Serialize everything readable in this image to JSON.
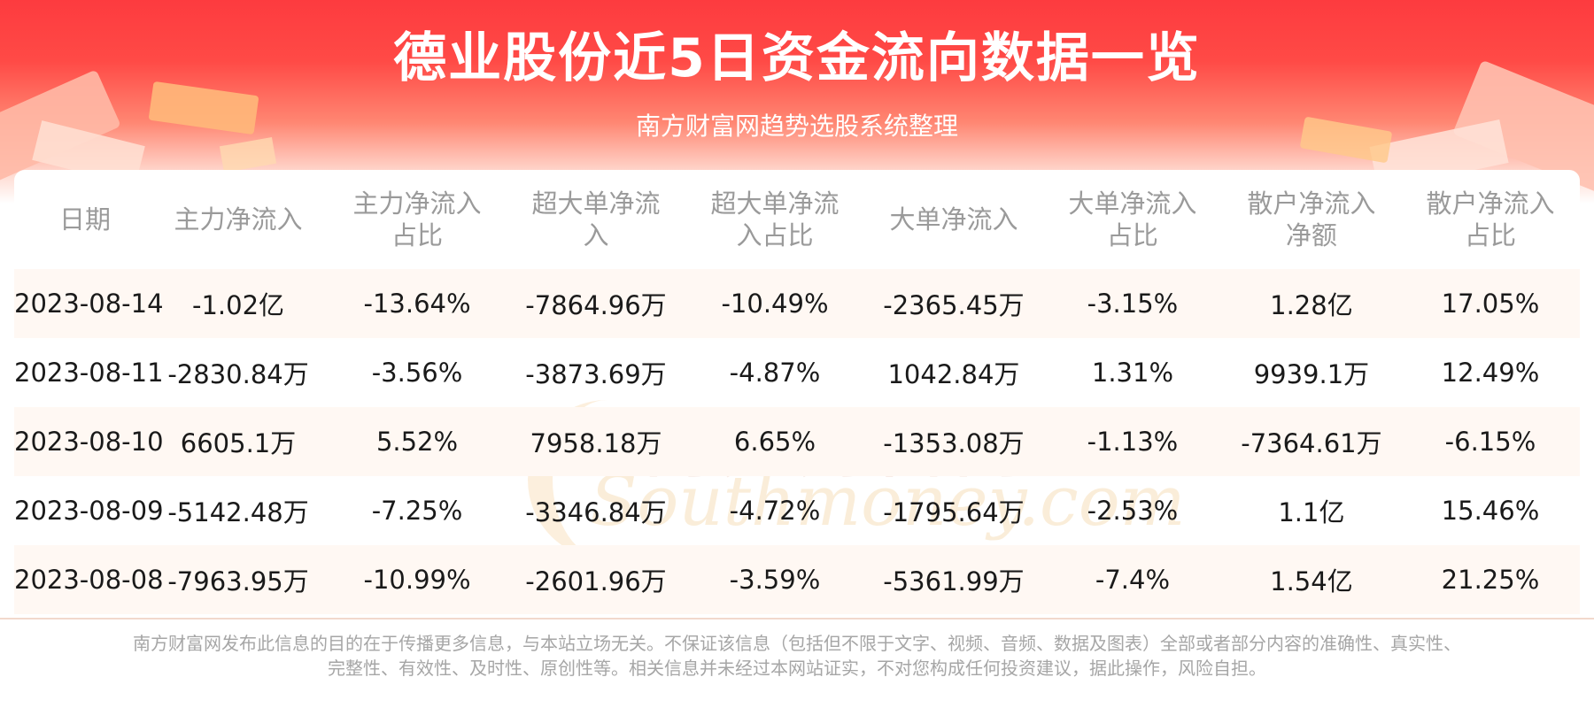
{
  "header": {
    "title": "德业股份近5日资金流向数据一览",
    "subtitle": "南方财富网趋势选股系统整理"
  },
  "watermark": {
    "cn": "南方财富网",
    "en": "Southmoney.com"
  },
  "table": {
    "columns": [
      "日期",
      "主力净流入",
      "主力净流入占比",
      "超大单净流入",
      "超大单净流入占比",
      "大单净流入",
      "大单净流入占比",
      "散户净流入净额",
      "散户净流入占比"
    ],
    "rows": [
      [
        "2023-08-14",
        "-1.02亿",
        "-13.64%",
        "-7864.96万",
        "-10.49%",
        "-2365.45万",
        "-3.15%",
        "1.28亿",
        "17.05%"
      ],
      [
        "2023-08-11",
        "-2830.84万",
        "-3.56%",
        "-3873.69万",
        "-4.87%",
        "1042.84万",
        "1.31%",
        "9939.1万",
        "12.49%"
      ],
      [
        "2023-08-10",
        "6605.1万",
        "5.52%",
        "7958.18万",
        "6.65%",
        "-1353.08万",
        "-1.13%",
        "-7364.61万",
        "-6.15%"
      ],
      [
        "2023-08-09",
        "-5142.48万",
        "-7.25%",
        "-3346.84万",
        "-4.72%",
        "-1795.64万",
        "-2.53%",
        "1.1亿",
        "15.46%"
      ],
      [
        "2023-08-08",
        "-7963.95万",
        "-10.99%",
        "-2601.96万",
        "-3.59%",
        "-5361.99万",
        "-7.4%",
        "1.54亿",
        "21.25%"
      ]
    ]
  },
  "footer": {
    "disclaimer_line1": "南方财富网发布此信息的目的在于传播更多信息，与本站立场无关。不保证该信息（包括但不限于文字、视频、音频、数据及图表）全部或者部分内容的准确性、真实性、",
    "disclaimer_line2": "完整性、有效性、及时性、原创性等。相关信息并未经过本网站证实，不对您构成任何投资建议，据此操作，风险自担。"
  },
  "colors": {
    "banner_red": "#fd3b3f",
    "header_text": "#9a9a9a",
    "row_stripe": "#fff8f3"
  }
}
